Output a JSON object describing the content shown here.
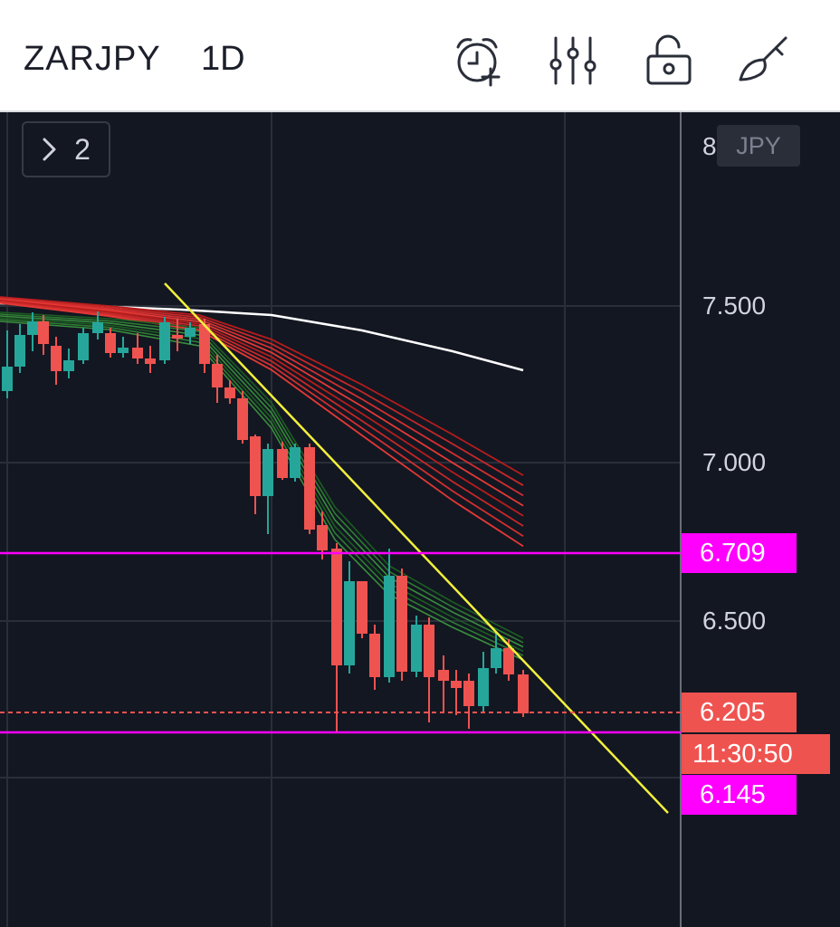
{
  "header": {
    "symbol": "ZARJPY",
    "interval": "1D",
    "icons": [
      "alarm-add-icon",
      "indicators-settings-icon",
      "lock-icon",
      "brush-icon"
    ]
  },
  "chart": {
    "collapse_count": "2",
    "currency": "JPY",
    "axis_labels": [
      "7.500",
      "7.000",
      "6.500"
    ],
    "partial_top_label": "8",
    "horizontal_lines": {
      "upper": {
        "value": "6.709",
        "color": "#ff00ff"
      },
      "lower": {
        "value": "6.145",
        "color": "#ff00ff"
      }
    },
    "last_price": {
      "value": "6.205",
      "color": "#ef5350"
    },
    "countdown": "11:30:50",
    "colors": {
      "background": "#131722",
      "bull": "#26a69a",
      "bear": "#ef5350",
      "trendline": "#f2f03c",
      "slow_ma": "#ffffff"
    }
  }
}
